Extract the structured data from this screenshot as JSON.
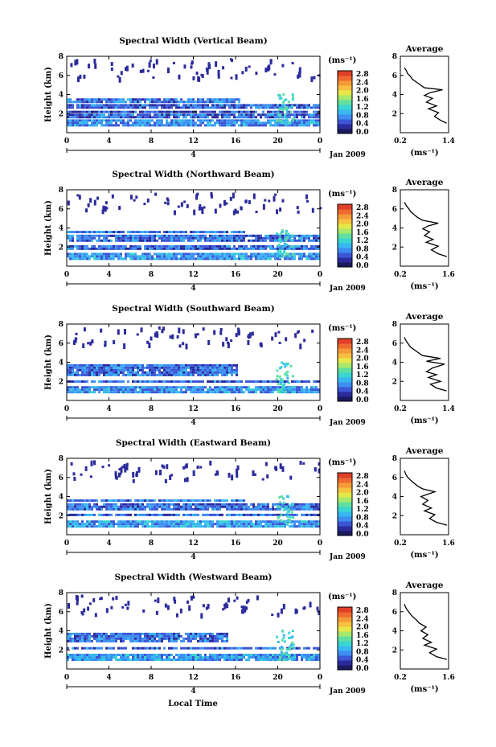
{
  "figure": {
    "xlabel": "Local Time",
    "date_label": "Jan 2009",
    "day_marker": "4",
    "avg_title": "Average",
    "unit_label": "(ms⁻¹)"
  },
  "colormap": [
    "#1a1a5e",
    "#2b2b9c",
    "#3c56d6",
    "#3d8ef0",
    "#37b8f0",
    "#3ad6d0",
    "#5fe0a0",
    "#a8e86a",
    "#e6e84a",
    "#f6c040",
    "#f59a38",
    "#ef6a30",
    "#e04028"
  ],
  "chart_data": [
    {
      "type": "heatmap",
      "title": "Spectral Width (Vertical Beam)",
      "xlabel": "Local Time",
      "ylabel": "Height (km)",
      "xlim": [
        0,
        24
      ],
      "ylim": [
        0,
        8
      ],
      "xticks": [
        "0",
        "4",
        "8",
        "12",
        "16",
        "20",
        "0"
      ],
      "yticks": [
        "2",
        "4",
        "6",
        "8"
      ],
      "colorbar": {
        "label": "(ms⁻¹)",
        "ticks": [
          "2.8",
          "2.4",
          "2.0",
          "1.6",
          "1.2",
          "0.8",
          "0.4",
          "0.0"
        ],
        "range": [
          0,
          2.8
        ]
      },
      "layers": [
        {
          "y_from": 0.6,
          "y_to": 1.4,
          "x_from": 0,
          "x_to": 24,
          "level": 0.7
        },
        {
          "y_from": 1.4,
          "y_to": 2.0,
          "x_from": 0,
          "x_to": 24,
          "level": 0.5
        },
        {
          "y_from": 2.0,
          "y_to": 2.3,
          "x_from": 0,
          "x_to": 24,
          "level": 0.4
        },
        {
          "y_from": 2.3,
          "y_to": 3.0,
          "x_from": 0,
          "x_to": 24,
          "level": 0.5
        },
        {
          "y_from": 3.0,
          "y_to": 3.6,
          "x_from": 0,
          "x_to": 16.5,
          "level": 0.6
        }
      ],
      "average": {
        "xlim": [
          0.2,
          1.4
        ],
        "xticks": [
          "0.2",
          "1.4"
        ],
        "yticks": [
          "2",
          "4",
          "6",
          "8"
        ],
        "x": [
          1.35,
          1.2,
          1.05,
          1.15,
          0.9,
          1.1,
          0.85,
          1.0,
          0.8,
          0.95,
          1.25,
          0.8,
          0.7,
          0.6,
          0.5,
          0.45,
          0.38,
          0.35,
          0.3
        ],
        "y": [
          1.0,
          1.3,
          1.7,
          2.1,
          2.5,
          2.8,
          3.2,
          3.6,
          3.9,
          4.2,
          4.5,
          4.7,
          5.0,
          5.3,
          5.6,
          5.9,
          6.2,
          6.5,
          6.8
        ]
      }
    },
    {
      "type": "heatmap",
      "title": "Spectral Width (Northward Beam)",
      "xlabel": "Local Time",
      "ylabel": "Height (km)",
      "xlim": [
        0,
        24
      ],
      "ylim": [
        0,
        8
      ],
      "xticks": [
        "0",
        "4",
        "8",
        "12",
        "16",
        "20",
        "0"
      ],
      "yticks": [
        "2",
        "4",
        "6",
        "8"
      ],
      "colorbar": {
        "label": "(ms⁻¹)",
        "ticks": [
          "2.8",
          "2.4",
          "2.0",
          "1.6",
          "1.2",
          "0.8",
          "0.4",
          "0.0"
        ],
        "range": [
          0,
          2.8
        ]
      },
      "layers": [
        {
          "y_from": 0.6,
          "y_to": 1.4,
          "x_from": 0,
          "x_to": 24,
          "level": 0.75
        },
        {
          "y_from": 1.6,
          "y_to": 2.2,
          "x_from": 0,
          "x_to": 24,
          "level": 0.5
        },
        {
          "y_from": 2.4,
          "y_to": 3.3,
          "x_from": 0,
          "x_to": 24,
          "level": 0.55
        },
        {
          "y_from": 3.3,
          "y_to": 3.7,
          "x_from": 0,
          "x_to": 17,
          "level": 0.6
        }
      ],
      "average": {
        "xlim": [
          0.2,
          1.6
        ],
        "xticks": [
          "0.2",
          "1.6"
        ],
        "yticks": [
          "2",
          "4",
          "6",
          "8"
        ],
        "x": [
          1.55,
          1.3,
          1.1,
          1.3,
          0.95,
          1.15,
          0.9,
          1.05,
          0.85,
          1.0,
          1.3,
          0.85,
          0.7,
          0.6,
          0.5,
          0.45,
          0.38,
          0.32
        ],
        "y": [
          1.0,
          1.3,
          1.7,
          2.1,
          2.5,
          2.8,
          3.2,
          3.6,
          3.9,
          4.2,
          4.5,
          4.8,
          5.1,
          5.4,
          5.7,
          6.0,
          6.3,
          6.7
        ]
      }
    },
    {
      "type": "heatmap",
      "title": "Spectral Width (Southward Beam)",
      "xlabel": "Local Time",
      "ylabel": "Height (km)",
      "xlim": [
        0,
        24
      ],
      "ylim": [
        0,
        8
      ],
      "xticks": [
        "0",
        "4",
        "8",
        "12",
        "16",
        "20",
        "0"
      ],
      "yticks": [
        "2",
        "4",
        "6",
        "8"
      ],
      "colorbar": {
        "label": "(ms⁻¹)",
        "ticks": [
          "2.8",
          "2.4",
          "2.0",
          "1.6",
          "1.2",
          "0.8",
          "0.4",
          "0.0"
        ],
        "range": [
          0,
          2.8
        ]
      },
      "layers": [
        {
          "y_from": 0.6,
          "y_to": 1.5,
          "x_from": 0,
          "x_to": 24,
          "level": 0.7
        },
        {
          "y_from": 1.7,
          "y_to": 2.1,
          "x_from": 0,
          "x_to": 24,
          "level": 0.5
        },
        {
          "y_from": 2.4,
          "y_to": 3.8,
          "x_from": 0,
          "x_to": 16.3,
          "level": 0.55
        }
      ],
      "average": {
        "xlim": [
          0.2,
          1.4
        ],
        "xticks": [
          "0.2",
          "1.4"
        ],
        "yticks": [
          "2",
          "4",
          "6",
          "8"
        ],
        "x": [
          1.35,
          1.1,
          0.95,
          1.2,
          0.9,
          1.1,
          0.85,
          1.0,
          1.3,
          0.85,
          1.2,
          0.75,
          0.65,
          0.55,
          0.45,
          0.4,
          0.35,
          0.3
        ],
        "y": [
          1.0,
          1.3,
          1.7,
          2.0,
          2.4,
          2.7,
          3.0,
          3.4,
          3.8,
          4.1,
          4.4,
          4.7,
          5.0,
          5.3,
          5.6,
          5.9,
          6.2,
          6.6
        ]
      }
    },
    {
      "type": "heatmap",
      "title": "Spectral Width (Eastward Beam)",
      "xlabel": "Local Time",
      "ylabel": "Height (km)",
      "xlim": [
        0,
        24
      ],
      "ylim": [
        0,
        8
      ],
      "xticks": [
        "0",
        "4",
        "8",
        "12",
        "16",
        "20",
        "0"
      ],
      "yticks": [
        "2",
        "4",
        "6",
        "8"
      ],
      "colorbar": {
        "label": "(ms⁻¹)",
        "ticks": [
          "2.8",
          "2.4",
          "2.0",
          "1.6",
          "1.2",
          "0.8",
          "0.4",
          "0.0"
        ],
        "range": [
          0,
          2.8
        ]
      },
      "layers": [
        {
          "y_from": 0.6,
          "y_to": 1.5,
          "x_from": 0,
          "x_to": 24,
          "level": 0.75
        },
        {
          "y_from": 1.7,
          "y_to": 2.2,
          "x_from": 0,
          "x_to": 24,
          "level": 0.5
        },
        {
          "y_from": 2.5,
          "y_to": 3.3,
          "x_from": 0,
          "x_to": 24,
          "level": 0.5
        },
        {
          "y_from": 3.3,
          "y_to": 3.7,
          "x_from": 0,
          "x_to": 17,
          "level": 0.6
        }
      ],
      "average": {
        "xlim": [
          0.2,
          1.6
        ],
        "xticks": [
          "0.2",
          "1.6"
        ],
        "yticks": [
          "2",
          "4",
          "6",
          "8"
        ],
        "x": [
          1.55,
          1.25,
          1.05,
          1.2,
          0.9,
          1.1,
          0.85,
          1.0,
          0.8,
          1.2,
          0.85,
          0.7,
          0.6,
          0.5,
          0.42,
          0.36,
          0.32
        ],
        "y": [
          1.0,
          1.3,
          1.7,
          2.1,
          2.5,
          2.8,
          3.2,
          3.6,
          4.0,
          4.5,
          4.8,
          5.1,
          5.4,
          5.7,
          6.0,
          6.3,
          6.7
        ]
      }
    },
    {
      "type": "heatmap",
      "title": "Spectral Width (Westward Beam)",
      "xlabel": "Local Time",
      "ylabel": "Height (km)",
      "xlim": [
        0,
        24
      ],
      "ylim": [
        0,
        8
      ],
      "xticks": [
        "0",
        "4",
        "8",
        "12",
        "16",
        "20",
        "0"
      ],
      "yticks": [
        "2",
        "4",
        "6",
        "8"
      ],
      "colorbar": {
        "label": "(ms⁻¹)",
        "ticks": [
          "2.8",
          "2.4",
          "2.0",
          "1.6",
          "1.2",
          "0.8",
          "0.4",
          "0.0"
        ],
        "range": [
          0,
          2.8
        ]
      },
      "layers": [
        {
          "y_from": 0.6,
          "y_to": 1.6,
          "x_from": 0,
          "x_to": 24,
          "level": 0.75
        },
        {
          "y_from": 1.8,
          "y_to": 2.3,
          "x_from": 0,
          "x_to": 24,
          "level": 0.5
        },
        {
          "y_from": 2.6,
          "y_to": 3.8,
          "x_from": 0,
          "x_to": 15.5,
          "level": 0.55
        }
      ],
      "average": {
        "xlim": [
          0.2,
          1.6
        ],
        "xticks": [
          "0.2",
          "1.6"
        ],
        "yticks": [
          "2",
          "4",
          "6",
          "8"
        ],
        "x": [
          1.55,
          1.25,
          1.05,
          1.25,
          0.9,
          1.1,
          0.85,
          1.0,
          0.8,
          0.95,
          0.75,
          0.65,
          0.55,
          0.48,
          0.42,
          0.36,
          0.32
        ],
        "y": [
          1.0,
          1.3,
          1.7,
          2.1,
          2.5,
          2.8,
          3.2,
          3.6,
          4.0,
          4.4,
          4.8,
          5.2,
          5.5,
          5.8,
          6.1,
          6.4,
          6.8
        ]
      }
    }
  ]
}
